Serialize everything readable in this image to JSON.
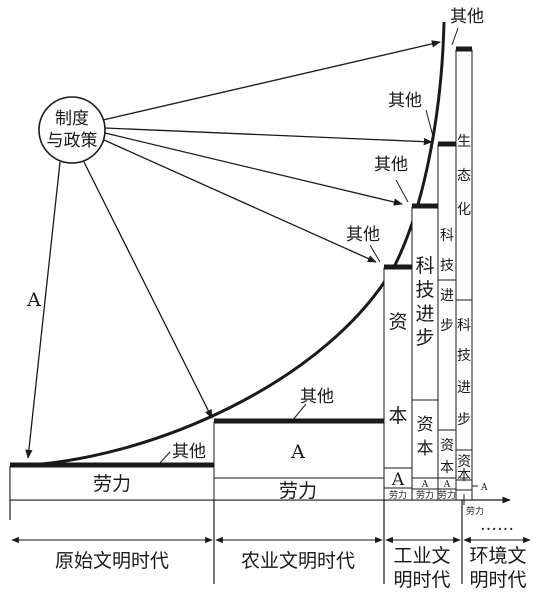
{
  "policy_node": {
    "line1": "制度",
    "line2": "与政策"
  },
  "label_a": "A",
  "other_label": "其他",
  "eras": [
    {
      "name": "原始文明时代"
    },
    {
      "name": "农业文明时代"
    },
    {
      "name_line1": "工业文",
      "name_line2": "明时代"
    },
    {
      "name_line1": "环境文",
      "name_line2": "明时代"
    }
  ],
  "ellipsis": "……",
  "agri_stack": {
    "labor": "劳力",
    "a": "A"
  },
  "industrial_stack": {
    "labor": "劳力",
    "a": "A",
    "capital": [
      "资",
      "本"
    ]
  },
  "tech_stack": {
    "labor": "劳力",
    "a": "A",
    "capital": [
      "资",
      "本"
    ],
    "tech": [
      "科",
      "技",
      "进",
      "步"
    ]
  },
  "env_stack1": {
    "labor": "劳力",
    "a": "A",
    "capital": [
      "资",
      "本"
    ],
    "tech": [
      "科",
      "技",
      "进",
      "步"
    ]
  },
  "env_stack2": {
    "labor": "劳力",
    "a": "A",
    "capital": [
      "资",
      "本"
    ],
    "tech": [
      "科",
      "技",
      "进",
      "步"
    ],
    "eco": [
      "生",
      "态",
      "化"
    ]
  },
  "primitive_stack": {
    "labor": "劳力"
  }
}
